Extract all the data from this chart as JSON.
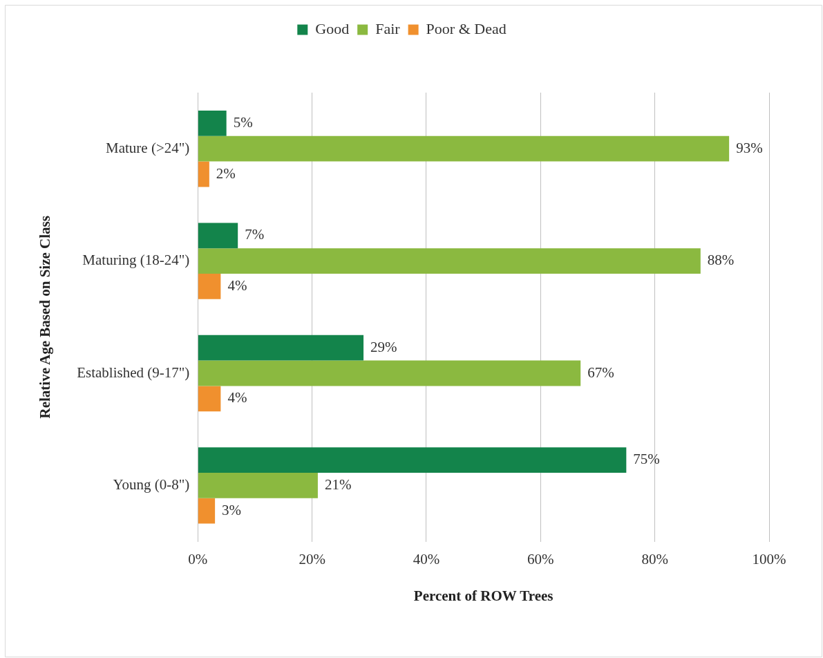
{
  "chart_data": {
    "type": "bar",
    "orientation": "horizontal",
    "xlabel": "Percent of ROW Trees",
    "ylabel": "Relative Age Based on Size Class",
    "categories": [
      "Mature (>24\")",
      "Maturing (18-24\")",
      "Established (9-17\")",
      "Young (0-8\")"
    ],
    "series": [
      {
        "name": "Good",
        "color": "#13844b",
        "values": [
          5,
          7,
          29,
          75
        ],
        "value_labels": [
          "5%",
          "7%",
          "29%",
          "75%"
        ]
      },
      {
        "name": "Fair",
        "color": "#8bb940",
        "values": [
          93,
          88,
          67,
          21
        ],
        "value_labels": [
          "93%",
          "88%",
          "67%",
          "21%"
        ]
      },
      {
        "name": "Poor & Dead",
        "color": "#f0902e",
        "values": [
          2,
          4,
          4,
          3
        ],
        "value_labels": [
          "2%",
          "4%",
          "4%",
          "3%"
        ]
      }
    ],
    "xlim": [
      0,
      100
    ],
    "xticks": [
      {
        "value": 0,
        "label": "0%"
      },
      {
        "value": 20,
        "label": "20%"
      },
      {
        "value": 40,
        "label": "40%"
      },
      {
        "value": 60,
        "label": "60%"
      },
      {
        "value": 80,
        "label": "80%"
      },
      {
        "value": 100,
        "label": "100%"
      }
    ],
    "grid": "x",
    "legend": "top"
  }
}
